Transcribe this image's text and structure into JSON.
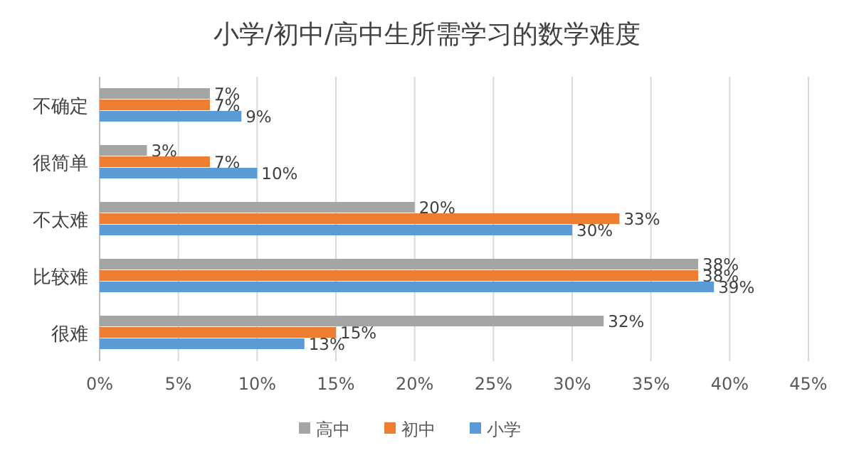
{
  "chart_data": {
    "type": "bar",
    "orientation": "horizontal",
    "title": "小学/初中/高中生所需学习的数学难度",
    "categories": [
      "不确定",
      "很简单",
      "不太难",
      "比较难",
      "很难"
    ],
    "series": [
      {
        "name": "高中",
        "color": "#a5a5a5",
        "values": [
          7,
          3,
          20,
          38,
          32
        ],
        "value_labels": [
          "7%",
          "3%",
          "20%",
          "38%",
          "32%"
        ]
      },
      {
        "name": "初中",
        "color": "#ed7d31",
        "values": [
          7,
          7,
          33,
          38,
          15
        ],
        "value_labels": [
          "7%",
          "7%",
          "33%",
          "38%",
          "15%"
        ]
      },
      {
        "name": "小学",
        "color": "#5b9bd5",
        "values": [
          9,
          10,
          30,
          39,
          13
        ],
        "value_labels": [
          "9%",
          "10%",
          "30%",
          "39%",
          "13%"
        ]
      }
    ],
    "xlim": [
      0,
      45
    ],
    "xticks": [
      {
        "value": 0,
        "label": "0%"
      },
      {
        "value": 5,
        "label": "5%"
      },
      {
        "value": 10,
        "label": "10%"
      },
      {
        "value": 15,
        "label": "15%"
      },
      {
        "value": 20,
        "label": "20%"
      },
      {
        "value": 25,
        "label": "25%"
      },
      {
        "value": 30,
        "label": "30%"
      },
      {
        "value": 35,
        "label": "35%"
      },
      {
        "value": 40,
        "label": "40%"
      },
      {
        "value": 45,
        "label": "45%"
      }
    ],
    "grid": "x",
    "legend": "bottom"
  }
}
